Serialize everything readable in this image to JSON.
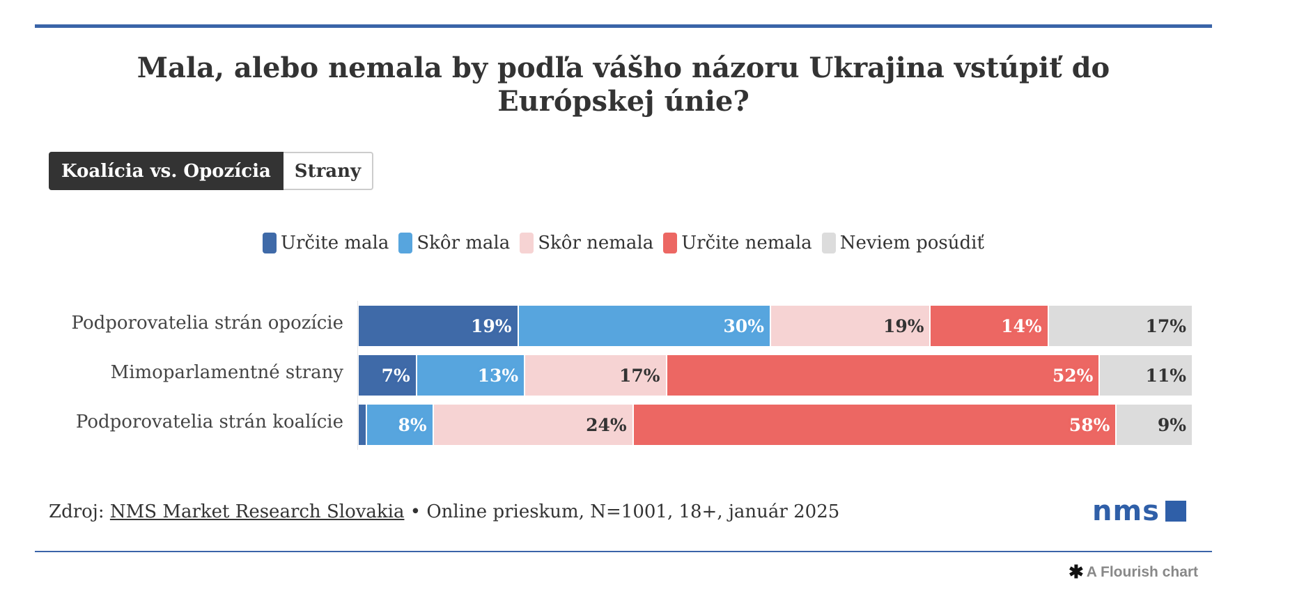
{
  "title": "Mala, alebo nemala by podľa vášho názoru Ukrajina vstúpiť do Európskej únie?",
  "toggle": {
    "active": "Koalícia vs. Opozícia",
    "inactive": "Strany"
  },
  "footer": {
    "prefix": "Zdroj: ",
    "source_link": "NMS Market Research Slovakia",
    "details": " • Online prieskum, N=1001, 18+, január 2025"
  },
  "logo": "nms",
  "flourish": "A Flourish chart",
  "chart_data": {
    "type": "bar",
    "orientation": "horizontal",
    "stacked": true,
    "categories": [
      "Podporovatelia strán opozície",
      "Mimoparlamentné strany",
      "Podporovatelia strán koalície"
    ],
    "series": [
      {
        "name": "Určite mala",
        "color": "#3f6aa8",
        "values": [
          19,
          7,
          1
        ]
      },
      {
        "name": "Skôr mala",
        "color": "#57a5de",
        "values": [
          30,
          13,
          8
        ]
      },
      {
        "name": "Skôr nemala",
        "color": "#f6d3d3",
        "values": [
          19,
          17,
          24
        ]
      },
      {
        "name": "Určite nemala",
        "color": "#ec6763",
        "values": [
          14,
          52,
          58
        ]
      },
      {
        "name": "Neviem posúdiť",
        "color": "#dcdcdc",
        "values": [
          17,
          11,
          9
        ]
      }
    ],
    "unit": "%",
    "legend": "top-center",
    "grid": false
  }
}
